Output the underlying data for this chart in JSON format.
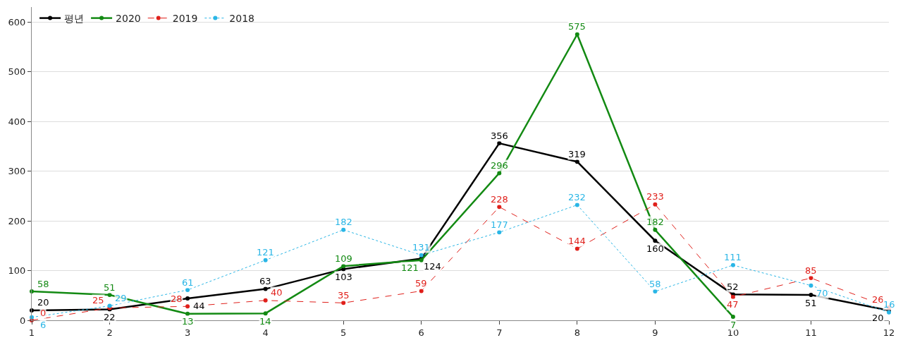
{
  "chart_data": {
    "type": "line",
    "x": [
      1,
      2,
      3,
      4,
      5,
      6,
      7,
      8,
      9,
      10,
      11,
      12
    ],
    "xlim": [
      1,
      12
    ],
    "xticks": [
      1,
      2,
      3,
      4,
      5,
      6,
      7,
      8,
      9,
      10,
      11,
      12
    ],
    "ylim": [
      0,
      630
    ],
    "yticks": [
      0,
      100,
      200,
      300,
      400,
      500,
      600
    ],
    "grid": "y",
    "legend": "top left",
    "marker": "circle",
    "data_labels": true,
    "series": [
      {
        "name": "평년",
        "color": "#000000",
        "line_style": "solid",
        "values": [
          20,
          22,
          44,
          63,
          103,
          124,
          356,
          319,
          160,
          52,
          51,
          20
        ]
      },
      {
        "name": "2020",
        "color": "#138a13",
        "line_style": "solid",
        "values": [
          58,
          51,
          13,
          14,
          109,
          121,
          296,
          575,
          182,
          7,
          null,
          null
        ]
      },
      {
        "name": "2019",
        "color": "#e0201b",
        "line_style": "dashed",
        "values": [
          0,
          25,
          28,
          40,
          35,
          59,
          228,
          144,
          233,
          47,
          85,
          26
        ]
      },
      {
        "name": "2018",
        "color": "#2ab6e6",
        "line_style": "dotted",
        "values": [
          6,
          29,
          61,
          121,
          182,
          131,
          177,
          232,
          58,
          111,
          70,
          16
        ]
      }
    ]
  }
}
